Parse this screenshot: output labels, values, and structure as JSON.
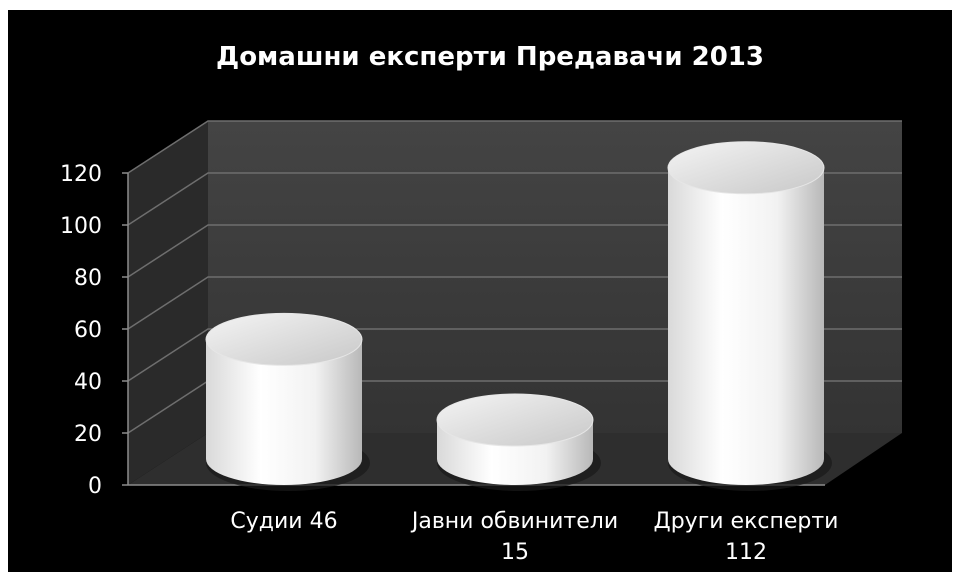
{
  "chart_data": {
    "type": "bar",
    "style": "3d-cylinder",
    "title": "Домашни експерти Предавачи 2013",
    "categories": [
      "Судии 46",
      "Јавни обвинители 15",
      "Други експерти 112"
    ],
    "category_lines": [
      [
        "Судии 46"
      ],
      [
        "Јавни обвинители",
        "15"
      ],
      [
        "Други експерти",
        "112"
      ]
    ],
    "values": [
      46,
      15,
      112
    ],
    "ylim": [
      0,
      120
    ],
    "yticks": [
      0,
      20,
      40,
      60,
      80,
      100,
      120
    ],
    "grid": true,
    "legend": "none",
    "colors": {
      "background": "#000000",
      "back_wall": "#3a3a3a",
      "side_wall": "#2a2a2a",
      "floor": "#2e2e2e",
      "gridline": "#6e6e6e",
      "bar_light": "#ffffff",
      "bar_shade": "#bfbfbf",
      "text": "#ffffff"
    }
  }
}
